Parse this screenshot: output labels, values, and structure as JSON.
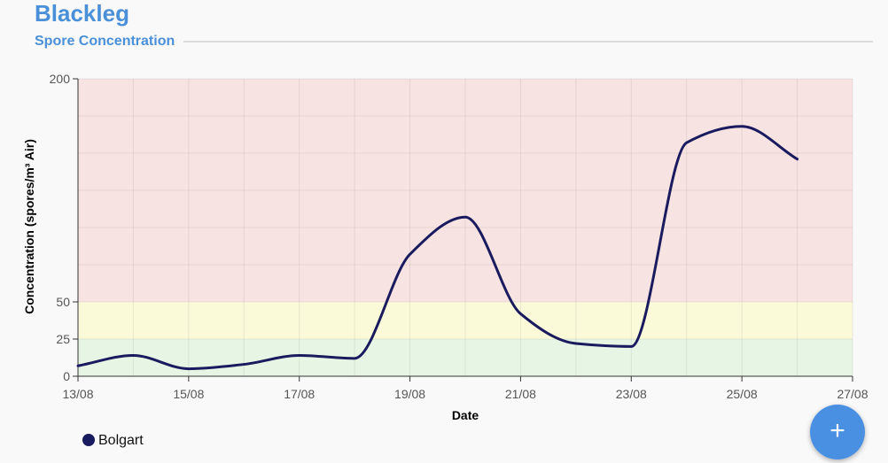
{
  "header": {
    "title": "Blackleg",
    "subtitle": "Spore Concentration"
  },
  "fab": {
    "label": "+",
    "icon": "plus-icon"
  },
  "colors": {
    "title": "#4a90d9",
    "series": "#1a1a5e",
    "zone_high": "#f7e3e2",
    "zone_medium": "#fafad9",
    "zone_low": "#e7f5e5",
    "fab": "#4a90e2"
  },
  "chart_data": {
    "type": "line",
    "title": "",
    "xlabel": "Date",
    "ylabel": "Concentration (spores/m³ Air)",
    "x_ticks": [
      "13/08",
      "15/08",
      "17/08",
      "19/08",
      "21/08",
      "23/08",
      "25/08",
      "27/08"
    ],
    "y_ticks": [
      0,
      25,
      50,
      200
    ],
    "ylim": [
      0,
      200
    ],
    "xlim": [
      "2024-08-13",
      "2024-08-27"
    ],
    "grid": true,
    "legend": "bottom-left",
    "zones": [
      {
        "from": 0,
        "to": 25,
        "color": "#e7f5e5"
      },
      {
        "from": 25,
        "to": 50,
        "color": "#fafad9"
      },
      {
        "from": 50,
        "to": 200,
        "color": "#f7e3e2"
      }
    ],
    "series": [
      {
        "name": "Bolgart",
        "color": "#1a1a5e",
        "x": [
          "2024-08-13",
          "2024-08-14",
          "2024-08-15",
          "2024-08-16",
          "2024-08-17",
          "2024-08-18",
          "2024-08-19",
          "2024-08-20",
          "2024-08-21",
          "2024-08-22",
          "2024-08-23",
          "2024-08-24",
          "2024-08-25",
          "2024-08-26"
        ],
        "values": [
          7,
          14,
          5,
          8,
          14,
          12,
          82,
          107,
          42,
          22,
          20,
          157,
          168,
          146
        ]
      }
    ]
  }
}
